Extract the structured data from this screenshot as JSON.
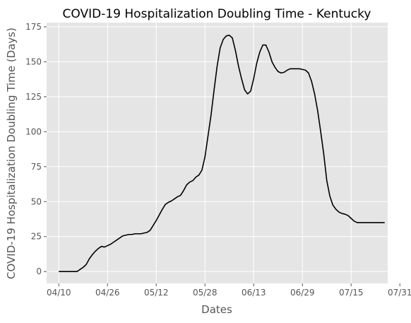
{
  "chart_data": {
    "type": "line",
    "title": "COVID-19 Hospitalization Doubling Time - Kentucky",
    "xlabel": "Dates",
    "ylabel": "COVID-19 Hospitalization Doubling Time (Days)",
    "x_ticks": [
      "04/10",
      "04/26",
      "05/12",
      "05/28",
      "06/13",
      "06/29",
      "07/15",
      "07/31"
    ],
    "y_ticks": [
      0,
      25,
      50,
      75,
      100,
      125,
      150,
      175
    ],
    "ylim": [
      -8.5,
      178
    ],
    "xlim_days": [
      -4,
      108
    ],
    "grid": true,
    "background": "#E5E5E5",
    "line_color": "#000000",
    "series": [
      {
        "x_days": [
          0,
          1,
          2,
          3,
          4,
          5,
          6,
          7,
          8,
          9,
          10,
          11,
          12,
          13,
          14,
          15,
          16,
          17,
          18,
          19,
          20,
          21,
          22,
          23,
          24,
          25,
          26,
          27,
          28,
          29,
          30,
          31,
          32,
          33,
          34,
          35,
          36,
          37,
          38,
          39,
          40,
          41,
          42,
          43,
          44,
          45,
          46,
          47,
          48,
          49,
          50,
          51,
          52,
          53,
          54,
          55,
          56,
          57,
          58,
          59,
          60,
          61,
          62,
          63,
          64,
          65,
          66,
          67,
          68,
          69,
          70,
          71,
          72,
          73,
          74,
          75,
          76,
          77,
          78,
          79,
          80,
          81,
          82,
          83,
          84,
          85,
          86,
          87,
          88,
          89,
          90,
          91,
          92,
          93,
          94,
          95,
          96,
          97,
          98,
          99,
          100,
          101,
          102,
          103,
          104,
          105,
          106,
          107
        ],
        "y": [
          0,
          0,
          0,
          0,
          0,
          0,
          0,
          1.5,
          3,
          5,
          9,
          12,
          14.5,
          16.5,
          18,
          17.5,
          18.5,
          19.5,
          21,
          22.5,
          24,
          25.5,
          26,
          26.5,
          26.5,
          27,
          27,
          27,
          27.5,
          28,
          29.5,
          33,
          36.5,
          40.5,
          44.5,
          48,
          49.5,
          50.5,
          52,
          53.5,
          54.5,
          58,
          62,
          64,
          65,
          67.5,
          69,
          72.5,
          82,
          97,
          112,
          130,
          147,
          160,
          166,
          168.5,
          169,
          167,
          158,
          147,
          138,
          130,
          127,
          129,
          138,
          149,
          157,
          162,
          162,
          157,
          150,
          146,
          143,
          142,
          142.5,
          144,
          145,
          145,
          145,
          145,
          144.5,
          144,
          142,
          136,
          127,
          115,
          100,
          84,
          65,
          54,
          47.5,
          44.5,
          42.5,
          41.5,
          41,
          40,
          38,
          36,
          35,
          35,
          35,
          35,
          35,
          35,
          35,
          35,
          35,
          35
        ],
        "x_start_date": "04/10"
      }
    ]
  }
}
